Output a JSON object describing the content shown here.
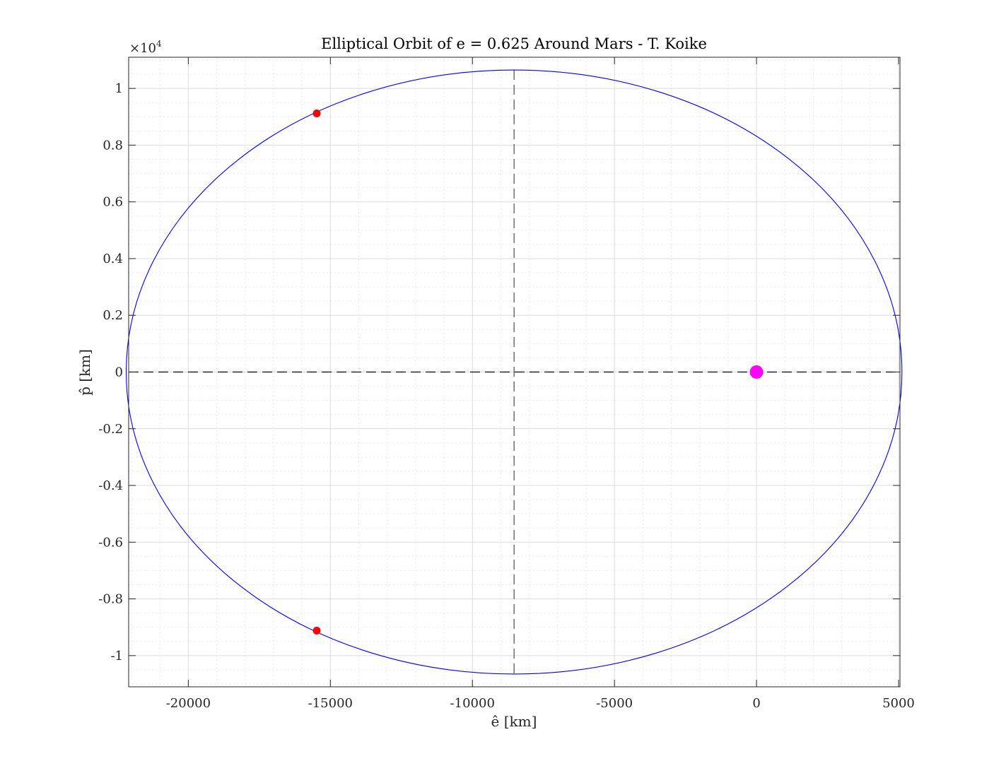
{
  "chart_data": {
    "type": "line",
    "title": "Elliptical Orbit of e = 0.625 Around Mars - T. Koike",
    "xlabel": "ê [km]",
    "ylabel": "p̂ [km]",
    "y_exponent_label": "×10",
    "y_exponent_power": "4",
    "xlim": [
      -22100,
      5050
    ],
    "ylim": [
      -11100,
      11100
    ],
    "x_ticks": [
      -20000,
      -15000,
      -10000,
      -5000,
      0,
      5000
    ],
    "x_tick_labels": [
      "-20000",
      "-15000",
      "-10000",
      "-5000",
      "0",
      "5000"
    ],
    "y_ticks": [
      10000,
      8000,
      6000,
      4000,
      2000,
      0,
      -2000,
      -4000,
      -6000,
      -8000,
      -10000
    ],
    "y_tick_labels": [
      "1",
      "0.8",
      "0.6",
      "0.4",
      "0.2",
      "0",
      "-0.2",
      "-0.4",
      "-0.6",
      "-0.8",
      "-1"
    ],
    "x_minor_step": 1000,
    "y_minor_step": 500,
    "grid": true,
    "series": [
      {
        "kind": "ellipse",
        "center": [
          -8533.3,
          0
        ],
        "semi_major_axis": 13653.3,
        "semi_minor_axis": 10650,
        "color": "#0000ff"
      },
      {
        "kind": "points",
        "x": [
          -15480,
          -15480
        ],
        "y": [
          9120,
          -9120
        ],
        "color": "#ff0000"
      },
      {
        "kind": "focus",
        "x": [
          0
        ],
        "y": [
          0
        ],
        "color": "#ff00ff"
      },
      {
        "kind": "dashed-line-horizontal",
        "x": [
          -22100,
          5050
        ],
        "y": [
          0,
          0
        ],
        "color": "#000000"
      },
      {
        "kind": "dashed-line-vertical",
        "x": [
          -8533.3,
          -8533.3
        ],
        "y": [
          10650,
          -10650
        ],
        "color": "#000000"
      }
    ],
    "colors": {
      "orbit": "#0000ff",
      "points": "#ff0000",
      "focus": "#ff00ff",
      "grid_major": "#dcdcdc",
      "grid_minor": "#e3e3e3",
      "axis": "#262626"
    }
  }
}
